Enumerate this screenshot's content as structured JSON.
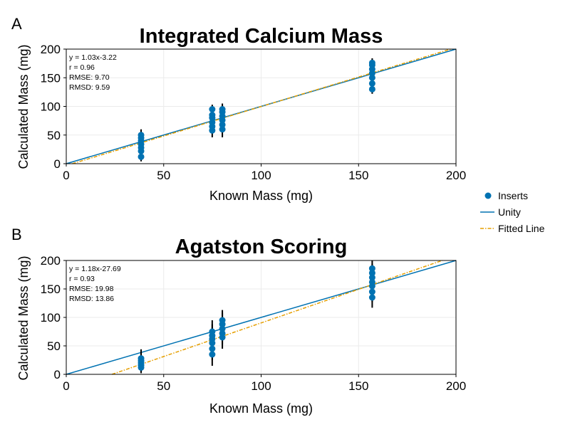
{
  "colors": {
    "inserts": "#0072B2",
    "unity": "#0072B2",
    "fitted": "#E69F00",
    "errorbar": "#000000",
    "grid": "#ebebeb",
    "frame": "#000000"
  },
  "legend": {
    "inserts": "Inserts",
    "unity": "Unity",
    "fitted": "Fitted Line"
  },
  "chart_data": [
    {
      "type": "scatter",
      "panel_label": "A",
      "title": "Integrated Calcium Mass",
      "xlabel": "Known Mass (mg)",
      "ylabel": "Calculated Mass (mg)",
      "xlim": [
        0,
        200
      ],
      "ylim": [
        0,
        200
      ],
      "xticks": [
        0,
        50,
        100,
        150,
        200
      ],
      "yticks": [
        0,
        50,
        100,
        150,
        200
      ],
      "grid": true,
      "stats": [
        "y = 1.03x-3.22",
        "r = 0.96",
        "RMSE: 9.70",
        "RMSD: 9.59"
      ],
      "fit": {
        "slope": 1.03,
        "intercept": -3.22
      },
      "series": [
        {
          "name": "Inserts",
          "points": [
            {
              "x": 38.4,
              "y": 12,
              "err": 8
            },
            {
              "x": 38.4,
              "y": 22,
              "err": 10
            },
            {
              "x": 38.4,
              "y": 28,
              "err": 12
            },
            {
              "x": 38.4,
              "y": 34,
              "err": 12
            },
            {
              "x": 38.4,
              "y": 40,
              "err": 12
            },
            {
              "x": 38.4,
              "y": 45,
              "err": 10
            },
            {
              "x": 38.4,
              "y": 50,
              "err": 10
            },
            {
              "x": 74.9,
              "y": 58,
              "err": 12
            },
            {
              "x": 74.9,
              "y": 65,
              "err": 12
            },
            {
              "x": 74.9,
              "y": 72,
              "err": 12
            },
            {
              "x": 74.9,
              "y": 80,
              "err": 12
            },
            {
              "x": 74.9,
              "y": 85,
              "err": 10
            },
            {
              "x": 74.9,
              "y": 95,
              "err": 8
            },
            {
              "x": 80.1,
              "y": 60,
              "err": 14
            },
            {
              "x": 80.1,
              "y": 68,
              "err": 14
            },
            {
              "x": 80.1,
              "y": 76,
              "err": 12
            },
            {
              "x": 80.1,
              "y": 83,
              "err": 12
            },
            {
              "x": 80.1,
              "y": 90,
              "err": 12
            },
            {
              "x": 80.1,
              "y": 95,
              "err": 10
            },
            {
              "x": 157.0,
              "y": 130,
              "err": 8
            },
            {
              "x": 157.0,
              "y": 140,
              "err": 10
            },
            {
              "x": 157.0,
              "y": 150,
              "err": 10
            },
            {
              "x": 157.0,
              "y": 158,
              "err": 10
            },
            {
              "x": 157.0,
              "y": 165,
              "err": 10
            },
            {
              "x": 157.0,
              "y": 172,
              "err": 10
            },
            {
              "x": 157.0,
              "y": 176,
              "err": 8
            }
          ]
        }
      ]
    },
    {
      "type": "scatter",
      "panel_label": "B",
      "title": "Agatston Scoring",
      "xlabel": "Known Mass (mg)",
      "ylabel": "Calculated Mass (mg)",
      "xlim": [
        0,
        200
      ],
      "ylim": [
        0,
        200
      ],
      "xticks": [
        0,
        50,
        100,
        150,
        200
      ],
      "yticks": [
        0,
        50,
        100,
        150,
        200
      ],
      "grid": true,
      "stats": [
        "y = 1.18x-27.69",
        "r = 0.93",
        "RMSE: 19.98",
        "RMSD: 13.86"
      ],
      "fit": {
        "slope": 1.18,
        "intercept": -27.69
      },
      "series": [
        {
          "name": "Inserts",
          "points": [
            {
              "x": 38.4,
              "y": 12,
              "err": 10
            },
            {
              "x": 38.4,
              "y": 16,
              "err": 12
            },
            {
              "x": 38.4,
              "y": 20,
              "err": 14
            },
            {
              "x": 38.4,
              "y": 24,
              "err": 14
            },
            {
              "x": 38.4,
              "y": 28,
              "err": 16
            },
            {
              "x": 74.9,
              "y": 35,
              "err": 20
            },
            {
              "x": 74.9,
              "y": 45,
              "err": 20
            },
            {
              "x": 74.9,
              "y": 55,
              "err": 20
            },
            {
              "x": 74.9,
              "y": 62,
              "err": 20
            },
            {
              "x": 74.9,
              "y": 68,
              "err": 20
            },
            {
              "x": 74.9,
              "y": 75,
              "err": 20
            },
            {
              "x": 80.1,
              "y": 65,
              "err": 20
            },
            {
              "x": 80.1,
              "y": 72,
              "err": 20
            },
            {
              "x": 80.1,
              "y": 80,
              "err": 20
            },
            {
              "x": 80.1,
              "y": 88,
              "err": 20
            },
            {
              "x": 80.1,
              "y": 95,
              "err": 18
            },
            {
              "x": 157.0,
              "y": 135,
              "err": 18
            },
            {
              "x": 157.0,
              "y": 145,
              "err": 18
            },
            {
              "x": 157.0,
              "y": 155,
              "err": 18
            },
            {
              "x": 157.0,
              "y": 162,
              "err": 18
            },
            {
              "x": 157.0,
              "y": 170,
              "err": 18
            },
            {
              "x": 157.0,
              "y": 178,
              "err": 16
            },
            {
              "x": 157.0,
              "y": 186,
              "err": 14
            }
          ]
        }
      ]
    }
  ]
}
